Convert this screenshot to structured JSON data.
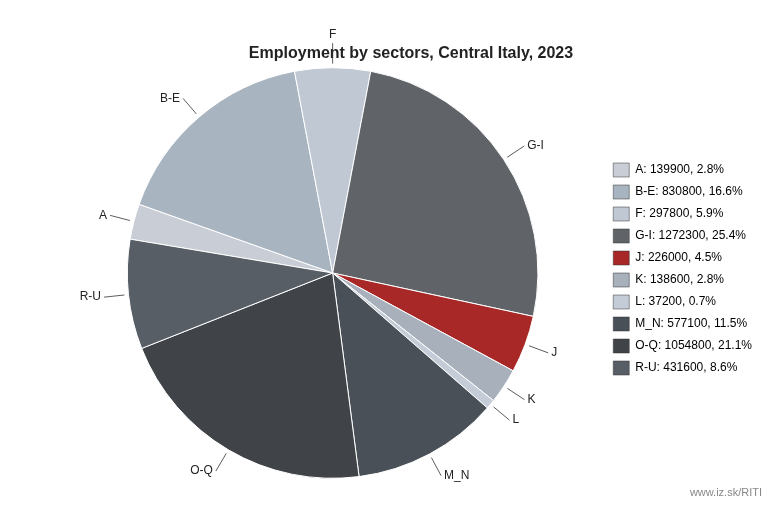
{
  "chart_data": {
    "type": "pie",
    "title": "Employment by sectors, Central Italy, 2023",
    "categories": [
      "A",
      "B-E",
      "F",
      "G-I",
      "J",
      "K",
      "L",
      "M_N",
      "O-Q",
      "R-U"
    ],
    "values": [
      139900,
      830800,
      297800,
      1272300,
      226000,
      138600,
      37200,
      577100,
      1054800,
      431600
    ],
    "colors": [
      "#c8cdd6",
      "#a8b4c0",
      "#c0c8d4",
      "#606468",
      "#a82828",
      "#a8b0bc",
      "#c4ccd8",
      "#4a5058",
      "#404448",
      "#585e66"
    ],
    "legend_labels": [
      "A: 139900, 2.8%",
      "B-E: 830800, 16.6%",
      "F: 297800, 5.9%",
      "G-I: 1272300, 25.4%",
      "J: 226000, 4.5%",
      "K: 138600, 2.8%",
      "L: 37200, 0.7%",
      "M_N: 577100, 11.5%",
      "O-Q: 1054800, 21.1%",
      "R-U: 431600, 8.6%"
    ],
    "legend": "right",
    "annotations": [
      "www.iz.sk/RITI"
    ]
  }
}
